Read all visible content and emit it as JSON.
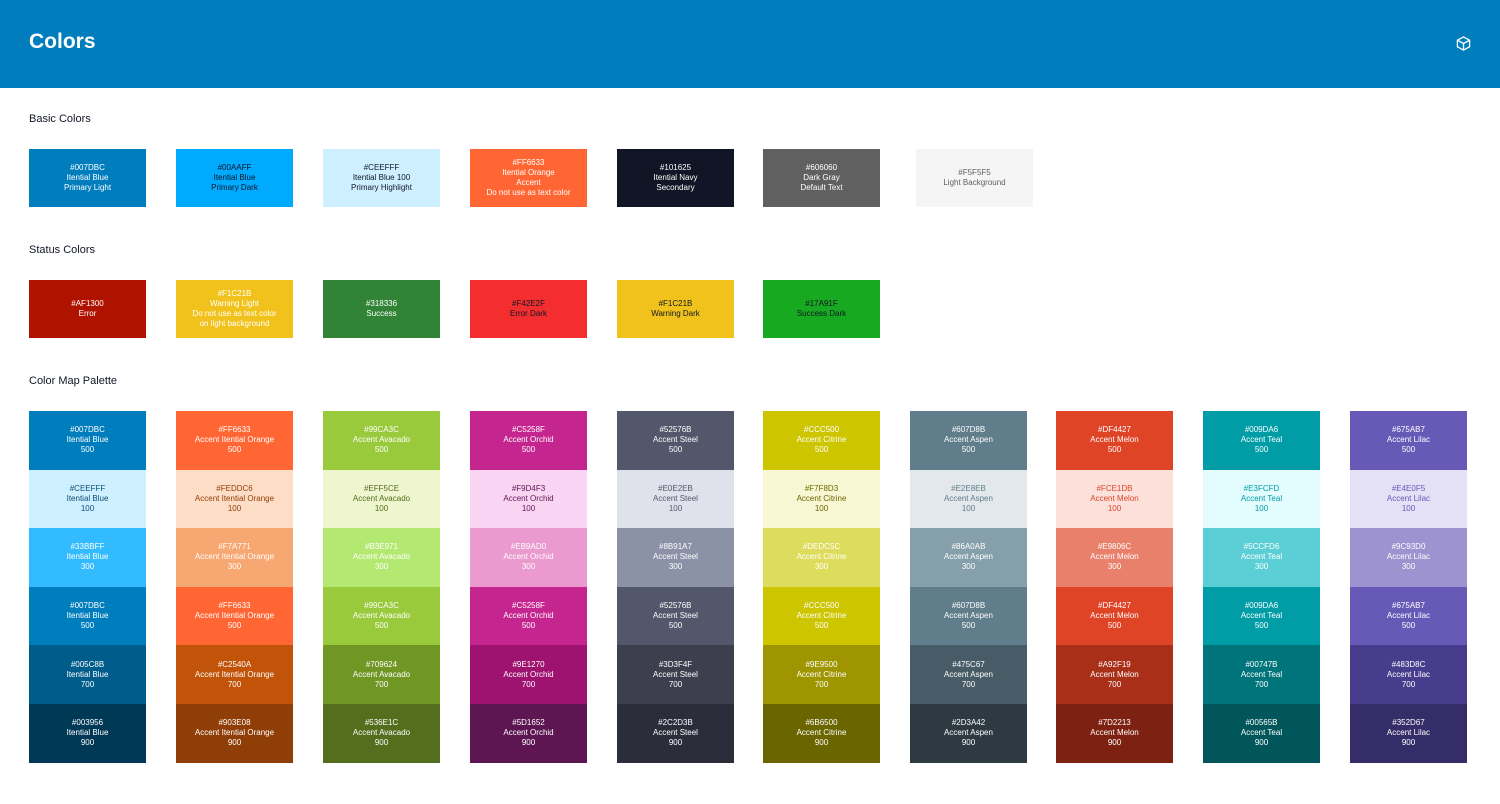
{
  "header": {
    "title": "Colors",
    "icon": "cube-icon"
  },
  "basic": {
    "title": "Basic Colors",
    "swatches": [
      {
        "bg": "#007DBC",
        "fg": "#ffffff",
        "lines": [
          "#007DBC",
          "Itential Blue",
          "Primary Light"
        ]
      },
      {
        "bg": "#00AAFF",
        "fg": "#101625",
        "lines": [
          "#00AAFF",
          "Itential Blue",
          "Primary Dark"
        ]
      },
      {
        "bg": "#CEEFFF",
        "fg": "#101625",
        "lines": [
          "#CEEFFF",
          "Itential Blue 100",
          "Primary Highlight"
        ]
      },
      {
        "bg": "#FF6633",
        "fg": "#ffffff",
        "lines": [
          "#FF6633",
          "Itential Orange",
          "Accent",
          "Do not use as text color"
        ]
      },
      {
        "bg": "#101625",
        "fg": "#ffffff",
        "lines": [
          "#101625",
          "Itential Navy",
          "Secondary"
        ]
      },
      {
        "bg": "#606060",
        "fg": "#ffffff",
        "lines": [
          "#606060",
          "Dark Gray",
          "Default Text"
        ]
      },
      {
        "bg": "#F5F5F5",
        "fg": "#606060",
        "lines": [
          "#F5F5F5",
          "Light Background"
        ]
      }
    ]
  },
  "status": {
    "title": "Status Colors",
    "swatches": [
      {
        "bg": "#AF1300",
        "fg": "#ffffff",
        "lines": [
          "#AF1300",
          "Error"
        ]
      },
      {
        "bg": "#F1C21B",
        "fg": "#ffffff",
        "lines": [
          "#F1C21B",
          "Warning Light",
          "Do not use as text color",
          "on light background"
        ]
      },
      {
        "bg": "#318336",
        "fg": "#ffffff",
        "lines": [
          "#318336",
          "Success"
        ]
      },
      {
        "bg": "#F42E2F",
        "fg": "#101625",
        "lines": [
          "#F42E2F",
          "Error Dark"
        ]
      },
      {
        "bg": "#F1C21B",
        "fg": "#101625",
        "lines": [
          "#F1C21B",
          "Warning Dark"
        ]
      },
      {
        "bg": "#17A91F",
        "fg": "#101625",
        "lines": [
          "#17A91F",
          "Success Dark"
        ]
      }
    ]
  },
  "palette": {
    "title": "Color Map Palette",
    "columns": [
      {
        "name": "Itential Blue",
        "tint": "#0D4D75",
        "cells": [
          {
            "hex": "#007DBC",
            "level": "500"
          },
          {
            "hex": "#CEEFFF",
            "level": "100"
          },
          {
            "hex": "#33BBFF",
            "level": "300"
          },
          {
            "hex": "#007DBC",
            "level": "500"
          },
          {
            "hex": "#005C8B",
            "level": "700"
          },
          {
            "hex": "#003956",
            "level": "900"
          }
        ]
      },
      {
        "name": "Accent Itential Orange",
        "tint": "#903E08",
        "cells": [
          {
            "hex": "#FF6633",
            "level": "500"
          },
          {
            "hex": "#FEDDC6",
            "level": "100"
          },
          {
            "hex": "#F7A771",
            "level": "300"
          },
          {
            "hex": "#FF6633",
            "level": "500"
          },
          {
            "hex": "#C2540A",
            "level": "700"
          },
          {
            "hex": "#903E08",
            "level": "900"
          }
        ]
      },
      {
        "name": "Accent Avacado",
        "tint": "#536E1C",
        "cells": [
          {
            "hex": "#99CA3C",
            "level": "500"
          },
          {
            "hex": "#EFF5CE",
            "level": "100"
          },
          {
            "hex": "#B3E971",
            "level": "300"
          },
          {
            "hex": "#99CA3C",
            "level": "500"
          },
          {
            "hex": "#709624",
            "level": "700"
          },
          {
            "hex": "#536E1C",
            "level": "900"
          }
        ]
      },
      {
        "name": "Accent Orchid",
        "tint": "#5D1652",
        "cells": [
          {
            "hex": "#C5258F",
            "level": "500"
          },
          {
            "hex": "#F9D4F3",
            "level": "100"
          },
          {
            "hex": "#EB9AD0",
            "level": "300"
          },
          {
            "hex": "#C5258F",
            "level": "500"
          },
          {
            "hex": "#9E1270",
            "level": "700"
          },
          {
            "hex": "#5D1652",
            "level": "900"
          }
        ]
      },
      {
        "name": "Accent Steel",
        "tint": "#52576B",
        "cells": [
          {
            "hex": "#52576B",
            "level": "500"
          },
          {
            "hex": "#E0E2EB",
            "level": "100"
          },
          {
            "hex": "#8B91A7",
            "level": "300"
          },
          {
            "hex": "#52576B",
            "level": "500"
          },
          {
            "hex": "#3D3F4F",
            "level": "700"
          },
          {
            "hex": "#2C2D3B",
            "level": "900"
          }
        ]
      },
      {
        "name": "Accent Citrine",
        "tint": "#6B6500",
        "cells": [
          {
            "hex": "#CCC500",
            "level": "500"
          },
          {
            "hex": "#F7F8D3",
            "level": "100"
          },
          {
            "hex": "#DEDC5C",
            "level": "300"
          },
          {
            "hex": "#CCC500",
            "level": "500"
          },
          {
            "hex": "#9E9500",
            "level": "700"
          },
          {
            "hex": "#6B6500",
            "level": "900"
          }
        ]
      },
      {
        "name": "Accent Aspen",
        "tint": "#607D8B",
        "cells": [
          {
            "hex": "#607D8B",
            "level": "500"
          },
          {
            "hex": "#E2E8EB",
            "level": "100"
          },
          {
            "hex": "#86A0AB",
            "level": "300"
          },
          {
            "hex": "#607D8B",
            "level": "500"
          },
          {
            "hex": "#475C67",
            "level": "700"
          },
          {
            "hex": "#2D3A42",
            "level": "900"
          }
        ]
      },
      {
        "name": "Accent Melon",
        "tint": "#DF4427",
        "cells": [
          {
            "hex": "#DF4427",
            "level": "500"
          },
          {
            "hex": "#FCE1DB",
            "level": "100"
          },
          {
            "hex": "#E9806C",
            "level": "300"
          },
          {
            "hex": "#DF4427",
            "level": "500"
          },
          {
            "hex": "#A92F19",
            "level": "700"
          },
          {
            "hex": "#7D2213",
            "level": "900"
          }
        ]
      },
      {
        "name": "Accent Teal",
        "tint": "#009DA6",
        "cells": [
          {
            "hex": "#009DA6",
            "level": "500"
          },
          {
            "hex": "#E3FCFD",
            "level": "100"
          },
          {
            "hex": "#5CCFD6",
            "level": "300"
          },
          {
            "hex": "#009DA6",
            "level": "500"
          },
          {
            "hex": "#00747B",
            "level": "700"
          },
          {
            "hex": "#00565B",
            "level": "900"
          }
        ]
      },
      {
        "name": "Accent Lilac",
        "tint": "#675AB7",
        "cells": [
          {
            "hex": "#675AB7",
            "level": "500"
          },
          {
            "hex": "#E4E0F5",
            "level": "100"
          },
          {
            "hex": "#9C93D0",
            "level": "300"
          },
          {
            "hex": "#675AB7",
            "level": "500"
          },
          {
            "hex": "#483D8C",
            "level": "700"
          },
          {
            "hex": "#352D67",
            "level": "900"
          }
        ]
      }
    ]
  }
}
